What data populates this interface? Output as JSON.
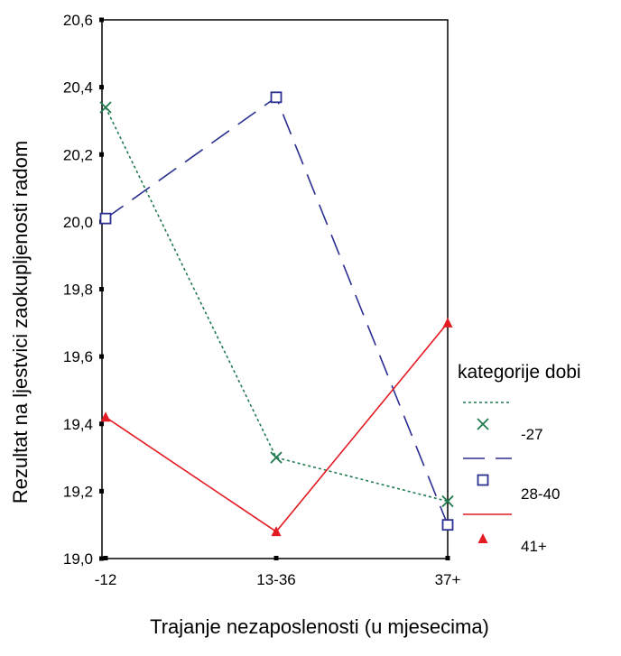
{
  "chart_data": {
    "type": "line",
    "xlabel": "Trajanje nezaposlenosti (u mjesecima)",
    "ylabel": "Rezultat na ljestvici zaokupljenosti radom",
    "categories": [
      "-12",
      "13-36",
      "37+"
    ],
    "ylim": [
      19.0,
      20.6
    ],
    "yticks": [
      19.0,
      19.2,
      19.4,
      19.6,
      19.8,
      20.0,
      20.2,
      20.4,
      20.6
    ],
    "ytick_labels": [
      "19,0",
      "19,2",
      "19,4",
      "19,6",
      "19,8",
      "20,0",
      "20,2",
      "20,4",
      "20,6"
    ],
    "grid": false,
    "legend": {
      "title": "kategorije dobi",
      "placement": "right"
    },
    "series": [
      {
        "name": "-27",
        "values": [
          20.34,
          19.3,
          19.17
        ],
        "color": "#1f7a4d",
        "dash": "dotted",
        "marker": "x"
      },
      {
        "name": "28-40",
        "values": [
          20.01,
          20.37,
          19.1
        ],
        "color": "#2b2f8f",
        "dash": "long-dash",
        "marker": "square"
      },
      {
        "name": "41+",
        "values": [
          19.42,
          19.08,
          19.7
        ],
        "color": "#e31b23",
        "dash": "solid",
        "marker": "triangle"
      }
    ]
  }
}
